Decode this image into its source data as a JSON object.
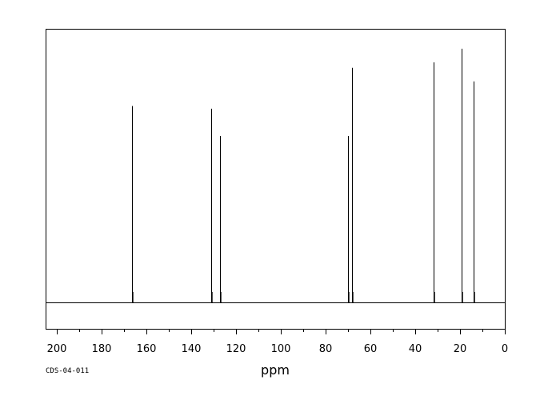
{
  "chart_data": {
    "type": "line",
    "xlabel": "ppm",
    "x_reversed": true,
    "xlim": [
      205,
      0
    ],
    "ylim": [
      0,
      100
    ],
    "x_ticks": [
      200,
      180,
      160,
      140,
      120,
      100,
      80,
      60,
      40,
      20,
      0
    ],
    "minor_tick_step": 10,
    "grid": false,
    "baseline": 0,
    "peaks": [
      {
        "ppm": 166.6,
        "intensity": 72
      },
      {
        "ppm": 131.0,
        "intensity": 71
      },
      {
        "ppm": 127.3,
        "intensity": 61
      },
      {
        "ppm": 70.0,
        "intensity": 61
      },
      {
        "ppm": 68.2,
        "intensity": 86
      },
      {
        "ppm": 31.7,
        "intensity": 88
      },
      {
        "ppm": 19.3,
        "intensity": 93
      },
      {
        "ppm": 13.8,
        "intensity": 81
      }
    ],
    "annotations": [
      {
        "text": "CDS-04-011",
        "position": "bottom-left"
      }
    ]
  }
}
